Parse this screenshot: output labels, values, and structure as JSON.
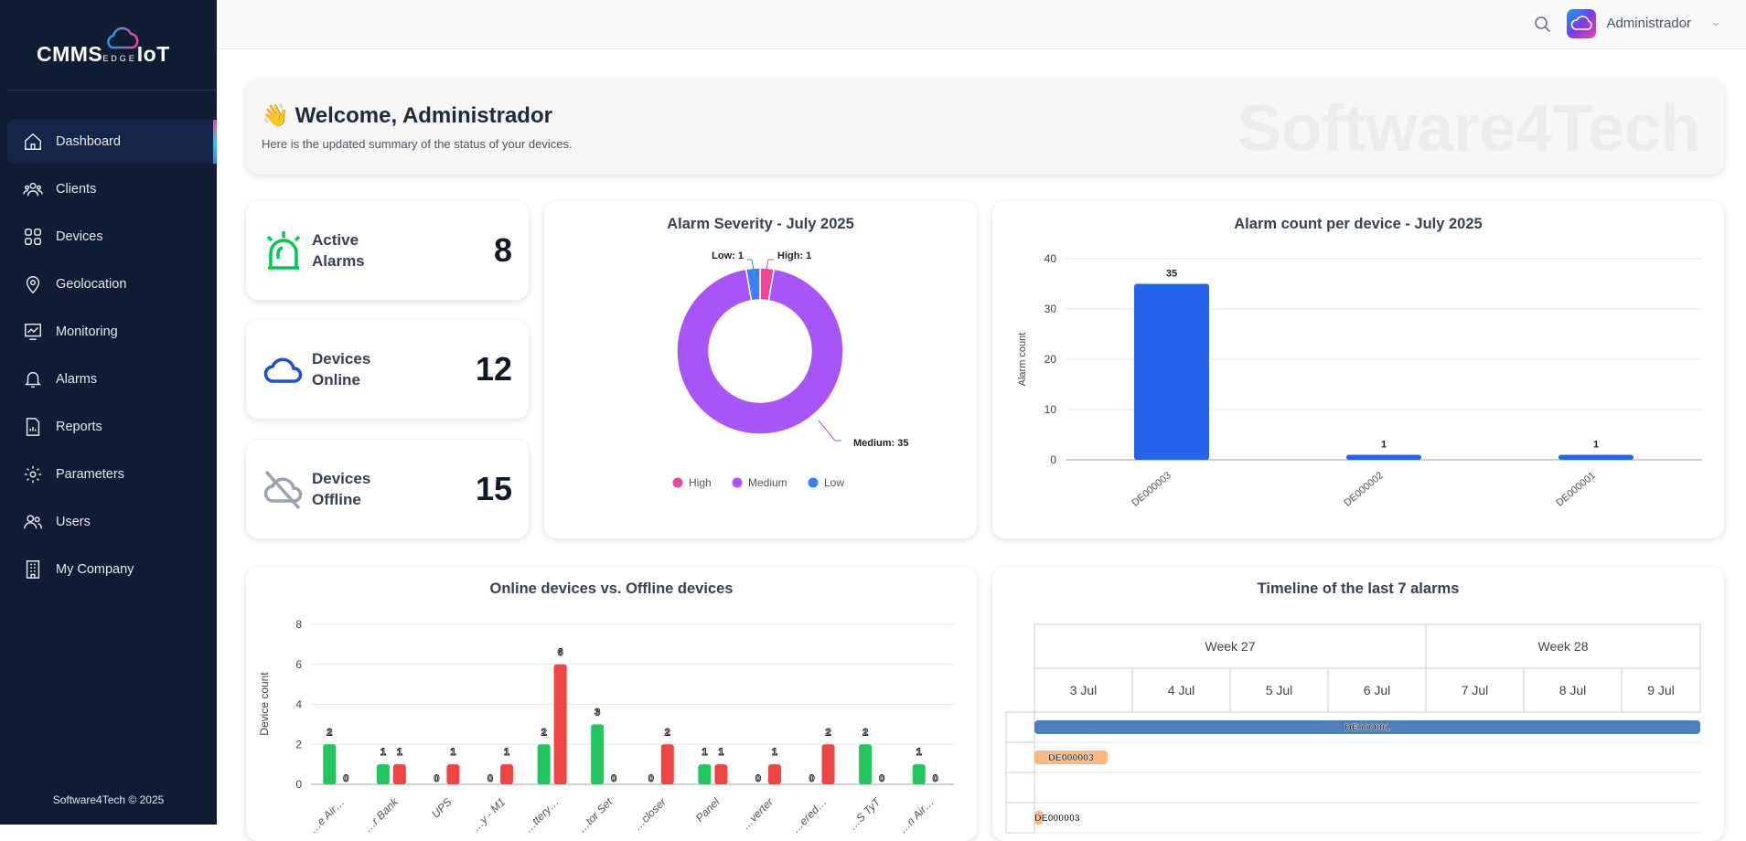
{
  "app": {
    "logo_text": "CMMS",
    "logo_sub": "EDGE",
    "logo_tail": "IoT",
    "copyright": "Software4Tech © 2025"
  },
  "sidebar": {
    "items": [
      {
        "label": "Dashboard",
        "icon": "home-icon",
        "active": true
      },
      {
        "label": "Clients",
        "icon": "users-group-icon"
      },
      {
        "label": "Devices",
        "icon": "grid-icon"
      },
      {
        "label": "Geolocation",
        "icon": "map-pin-icon"
      },
      {
        "label": "Monitoring",
        "icon": "chart-monitor-icon"
      },
      {
        "label": "Alarms",
        "icon": "bell-icon"
      },
      {
        "label": "Reports",
        "icon": "report-icon"
      },
      {
        "label": "Parameters",
        "icon": "gear-icon"
      },
      {
        "label": "Users",
        "icon": "users-icon"
      },
      {
        "label": "My Company",
        "icon": "building-icon"
      }
    ]
  },
  "header": {
    "user": "Administrador"
  },
  "welcome": {
    "emoji": "👋",
    "title": "Welcome, Administrador",
    "subtitle": "Here is the updated summary of the status of your devices.",
    "watermark": "Software4Tech"
  },
  "stats": [
    {
      "label1": "Active",
      "label2": "Alarms",
      "value": "8",
      "color": "#00c853"
    },
    {
      "label1": "Devices",
      "label2": "Online",
      "value": "12",
      "color": "#1d4ed8"
    },
    {
      "label1": "Devices",
      "label2": "Offline",
      "value": "15",
      "color": "#9ca3af"
    }
  ],
  "chart_data": [
    {
      "type": "pie",
      "title": "Alarm Severity - July 2025",
      "categories": [
        "High",
        "Medium",
        "Low"
      ],
      "values": [
        1,
        35,
        1
      ],
      "colors": [
        "#ec4899",
        "#a855f7",
        "#3b82f6"
      ],
      "data_labels": [
        "High: 1",
        "Medium: 35",
        "Low: 1"
      ],
      "legend": "bottom"
    },
    {
      "type": "bar",
      "title": "Alarm count per device - July 2025",
      "categories": [
        "DE000003",
        "DE000002",
        "DE000001"
      ],
      "values": [
        35,
        1,
        1
      ],
      "ylabel": "Alarm count",
      "ylim": [
        0,
        40
      ],
      "yticks": [
        0,
        10,
        20,
        30,
        40
      ],
      "color": "#2563eb",
      "grid": true
    },
    {
      "type": "bar",
      "title": "Online devices vs. Offline devices",
      "categories": [
        "…e Air…",
        "…r Bank",
        "UPS",
        "…y - M1",
        "…ttery…",
        "…tor Set",
        "…closer",
        "Panel",
        "…verter",
        "…ered…",
        "…S TyT",
        "…n Air…"
      ],
      "series": [
        {
          "values": [
            2,
            1,
            0,
            0,
            2,
            3,
            0,
            1,
            0,
            0,
            2,
            1
          ],
          "color": "#22c55e"
        },
        {
          "values": [
            0,
            1,
            1,
            1,
            6,
            0,
            2,
            1,
            1,
            2,
            0,
            0
          ],
          "color": "#ef4444"
        }
      ],
      "ylabel": "Device count",
      "ylim": [
        0,
        8
      ],
      "yticks": [
        0,
        2,
        4,
        6,
        8
      ],
      "grid": true
    },
    {
      "type": "table",
      "title": "Timeline of the last 7 alarms",
      "weeks": [
        {
          "label": "Week 27",
          "days": 4
        },
        {
          "label": "Week 28",
          "days": 3
        }
      ],
      "days": [
        "3 Jul",
        "4 Jul",
        "5 Jul",
        "6 Jul",
        "7 Jul",
        "8 Jul",
        "9 Jul"
      ],
      "bars": [
        {
          "label": "DE000001",
          "start": 0,
          "end": 1,
          "color": "#4f7fba"
        },
        {
          "label": "DE000003",
          "start": 0,
          "end": 0.11,
          "color": "#fbb883"
        },
        {
          "label": "",
          "start": 0,
          "end": 0,
          "color": ""
        },
        {
          "label": "DE000003",
          "start": 0,
          "end": 0.013,
          "color": "#fbb883"
        }
      ]
    }
  ]
}
